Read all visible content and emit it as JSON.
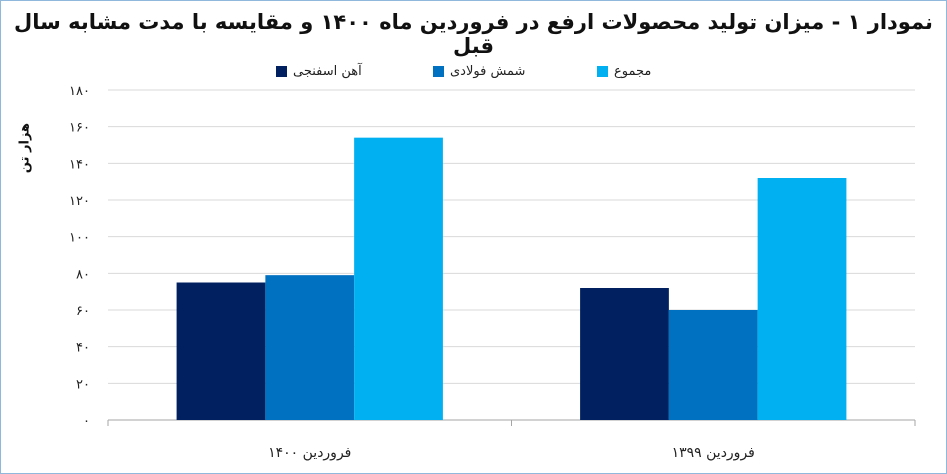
{
  "chart_data": {
    "type": "bar",
    "title": "نمودار ۱ - میزان تولید محصولات ارفع در فروردین ماه ۱۴۰۰ و مقایسه با مدت مشابه سال قبل",
    "ylabel": "هزار تن",
    "xlabel": "",
    "categories": [
      "فروردین ۱۴۰۰",
      "فروردین ۱۳۹۹"
    ],
    "series": [
      {
        "name": "آهن اسفنجی",
        "color": "#002060",
        "values": [
          75,
          72
        ]
      },
      {
        "name": "شمش فولادی",
        "color": "#0070c0",
        "values": [
          79,
          60
        ]
      },
      {
        "name": "مجموع",
        "color": "#00b0f0",
        "values": [
          154,
          132
        ]
      }
    ],
    "ylim": [
      0,
      180
    ],
    "yticks": [
      0,
      20,
      40,
      60,
      80,
      100,
      120,
      140,
      160,
      180
    ],
    "ytick_labels": [
      "۰",
      "۲۰",
      "۴۰",
      "۶۰",
      "۸۰",
      "۱۰۰",
      "۱۲۰",
      "۱۴۰",
      "۱۶۰",
      "۱۸۰"
    ],
    "grid": true,
    "legend_position": "top"
  }
}
